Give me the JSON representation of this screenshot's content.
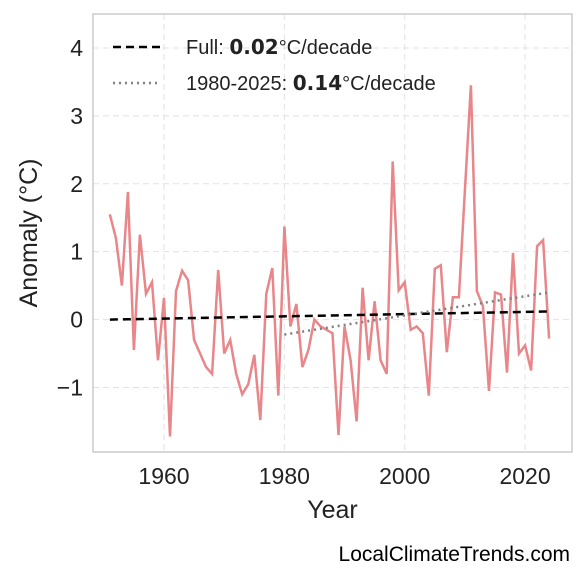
{
  "chart_data": {
    "type": "line",
    "x": [
      1951,
      1952,
      1953,
      1954,
      1955,
      1956,
      1957,
      1958,
      1959,
      1960,
      1961,
      1962,
      1963,
      1964,
      1965,
      1966,
      1967,
      1968,
      1969,
      1970,
      1971,
      1972,
      1973,
      1974,
      1975,
      1976,
      1977,
      1978,
      1979,
      1980,
      1981,
      1982,
      1983,
      1984,
      1985,
      1986,
      1987,
      1988,
      1989,
      1990,
      1991,
      1992,
      1993,
      1994,
      1995,
      1996,
      1997,
      1998,
      1999,
      2000,
      2001,
      2002,
      2003,
      2004,
      2005,
      2006,
      2007,
      2008,
      2009,
      2010,
      2011,
      2012,
      2013,
      2014,
      2015,
      2016,
      2017,
      2018,
      2019,
      2020,
      2021,
      2022,
      2023,
      2024
    ],
    "values": [
      1.55,
      1.2,
      0.5,
      1.88,
      -0.45,
      1.25,
      0.38,
      0.55,
      -0.6,
      0.32,
      -1.72,
      0.42,
      0.72,
      0.58,
      -0.3,
      -0.5,
      -0.7,
      -0.8,
      0.73,
      -0.5,
      -0.3,
      -0.8,
      -1.1,
      -0.95,
      -0.52,
      -1.48,
      0.38,
      0.76,
      -1.12,
      1.37,
      -0.1,
      0.23,
      -0.7,
      -0.45,
      0.0,
      -0.1,
      -0.15,
      -0.2,
      -1.7,
      -0.1,
      -0.6,
      -1.5,
      0.47,
      -0.6,
      0.27,
      -0.6,
      -0.8,
      2.33,
      0.43,
      0.55,
      -0.15,
      -0.1,
      -0.2,
      -1.12,
      0.75,
      0.8,
      -0.48,
      0.33,
      0.33,
      1.9,
      3.45,
      0.42,
      0.2,
      -1.05,
      0.4,
      0.37,
      -0.78,
      0.98,
      -0.5,
      -0.38,
      -0.75,
      1.08,
      1.17,
      -0.28
    ],
    "color": "#e8868a",
    "trend_lines": [
      {
        "prefix": "Full: ",
        "slope": 0.02,
        "unit": "°C/decade",
        "x": [
          1951,
          2024
        ],
        "values": [
          0.0,
          0.12
        ],
        "color": "#000000",
        "style": "dashed"
      },
      {
        "prefix": "1980-2025: ",
        "slope": 0.14,
        "unit": "°C/decade",
        "x": [
          1980,
          2024
        ],
        "values": [
          -0.22,
          0.4
        ],
        "color": "#808080",
        "style": "dotted"
      }
    ],
    "xlabel": "Year",
    "ylabel": "Anomaly (°C)",
    "xlim": [
      1948.2,
      2027.8
    ],
    "ylim": [
      -1.95,
      4.5
    ],
    "xticks": [
      1960,
      1980,
      2000,
      2020
    ],
    "yticks": [
      {
        "value": -1,
        "label": "−1"
      },
      0,
      1,
      2,
      3,
      4
    ],
    "grid": true,
    "legend": "upper left",
    "footer": "LocalClimateTrends.com"
  }
}
